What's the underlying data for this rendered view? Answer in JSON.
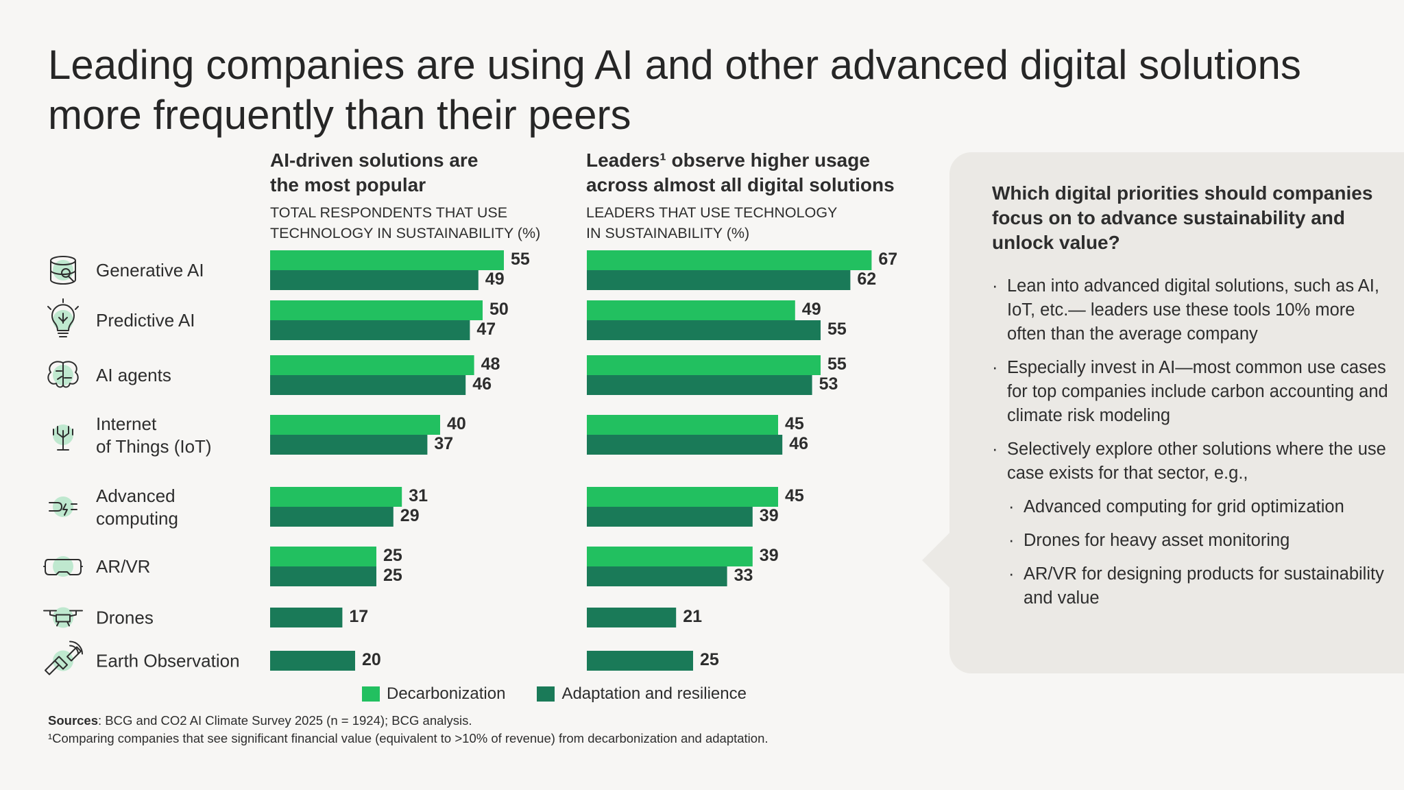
{
  "title": {
    "line1": "Leading companies are using AI and other advanced digital solutions",
    "line2": "more frequently than their peers"
  },
  "colors": {
    "decarbonization": "#22c060",
    "adaptation": "#1a7a58"
  },
  "chart_data": {
    "type": "bar",
    "orientation": "horizontal",
    "categories": [
      "Generative AI",
      "Predictive AI",
      "AI agents",
      "Internet of Things (IoT)",
      "Advanced computing",
      "AR/VR",
      "Drones",
      "Earth Observation"
    ],
    "category_lines": [
      [
        "Generative AI"
      ],
      [
        "Predictive AI"
      ],
      [
        "AI agents"
      ],
      [
        "Internet",
        "of Things (IoT)"
      ],
      [
        "Advanced",
        "computing"
      ],
      [
        "AR/VR"
      ],
      [
        "Drones"
      ],
      [
        "Earth Observation"
      ]
    ],
    "icons": [
      "database-search-icon",
      "lightbulb-circuit-icon",
      "brain-network-icon",
      "iot-antenna-icon",
      "advanced-computing-icon",
      "vr-headset-icon",
      "drone-icon",
      "satellite-icon"
    ],
    "panels": [
      {
        "heading1": "AI-driven solutions are",
        "heading2": "the most popular",
        "sub1": "TOTAL RESPONDENTS THAT USE",
        "sub2": "TECHNOLOGY IN SUSTAINABILITY (%)",
        "series": [
          {
            "name": "Decarbonization",
            "values": [
              55,
              50,
              48,
              40,
              31,
              25,
              null,
              null
            ]
          },
          {
            "name": "Adaptation and resilience",
            "values": [
              49,
              47,
              46,
              37,
              29,
              25,
              17,
              20
            ]
          }
        ]
      },
      {
        "heading1": "Leaders¹ observe higher usage",
        "heading2": "across almost all digital solutions",
        "sub1": "LEADERS THAT USE TECHNOLOGY",
        "sub2": "IN SUSTAINABILITY (%)",
        "series": [
          {
            "name": "Decarbonization",
            "values": [
              67,
              49,
              55,
              45,
              45,
              39,
              null,
              null
            ]
          },
          {
            "name": "Adaptation and resilience",
            "values": [
              62,
              55,
              53,
              46,
              39,
              33,
              21,
              25
            ]
          }
        ]
      }
    ],
    "legend": [
      "Decarbonization",
      "Adaptation and resilience"
    ],
    "legend_position": "bottom"
  },
  "sidebar": {
    "question": "Which digital priorities should companies focus on to advance sustainability and unlock value?",
    "bullets": [
      "Lean into advanced digital solutions, such as AI, IoT, etc.— leaders use these tools 10% more often than the average company",
      "Especially invest in AI—most common use cases for top companies include carbon accounting and climate risk modeling",
      "Selectively explore other solutions where the use case exists for that sector, e.g.,"
    ],
    "sub_bullets": [
      "Advanced computing for grid optimization",
      "Drones for heavy asset monitoring",
      "AR/VR for designing products for sustainability and value"
    ]
  },
  "sources": {
    "label": "Sources",
    "text": ": BCG and CO2 AI Climate Survey 2025 (n = 1924); BCG analysis.",
    "footnote": "¹Comparing companies that see significant financial value (equivalent to >10% of revenue) from decarbonization and adaptation."
  }
}
